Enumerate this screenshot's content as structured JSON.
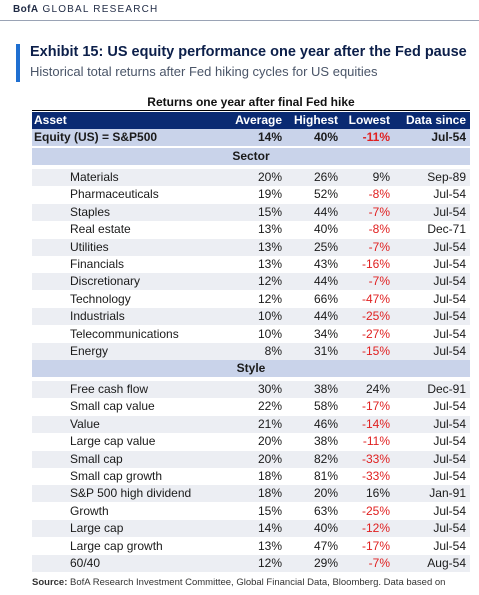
{
  "header": {
    "brand_bold": "BofA",
    "brand_rest": "GLOBAL RESEARCH"
  },
  "exhibit": {
    "title": "Exhibit 15: US equity performance one year after the Fed pause",
    "subtitle": "Historical total returns after Fed hiking cycles for US equities"
  },
  "table": {
    "caption": "Returns one year after final Fed hike",
    "columns": [
      "Asset",
      "Average",
      "Highest",
      "Lowest",
      "Data since"
    ],
    "equity": {
      "asset": "Equity (US) = S&P500",
      "average": "14%",
      "highest": "40%",
      "lowest": "-11%",
      "since": "Jul-54"
    },
    "sector_label": "Sector",
    "sector": [
      {
        "asset": "Materials",
        "average": "20%",
        "highest": "26%",
        "lowest": "9%",
        "since": "Sep-89"
      },
      {
        "asset": "Pharmaceuticals",
        "average": "19%",
        "highest": "52%",
        "lowest": "-8%",
        "since": "Jul-54"
      },
      {
        "asset": "Staples",
        "average": "15%",
        "highest": "44%",
        "lowest": "-7%",
        "since": "Jul-54"
      },
      {
        "asset": "Real estate",
        "average": "13%",
        "highest": "40%",
        "lowest": "-8%",
        "since": "Dec-71"
      },
      {
        "asset": "Utilities",
        "average": "13%",
        "highest": "25%",
        "lowest": "-7%",
        "since": "Jul-54"
      },
      {
        "asset": "Financials",
        "average": "13%",
        "highest": "43%",
        "lowest": "-16%",
        "since": "Jul-54"
      },
      {
        "asset": "Discretionary",
        "average": "12%",
        "highest": "44%",
        "lowest": "-7%",
        "since": "Jul-54"
      },
      {
        "asset": "Technology",
        "average": "12%",
        "highest": "66%",
        "lowest": "-47%",
        "since": "Jul-54"
      },
      {
        "asset": "Industrials",
        "average": "10%",
        "highest": "44%",
        "lowest": "-25%",
        "since": "Jul-54"
      },
      {
        "asset": "Telecommunications",
        "average": "10%",
        "highest": "34%",
        "lowest": "-27%",
        "since": "Jul-54"
      },
      {
        "asset": "Energy",
        "average": "8%",
        "highest": "31%",
        "lowest": "-15%",
        "since": "Jul-54"
      }
    ],
    "style_label": "Style",
    "style": [
      {
        "asset": "Free cash flow",
        "average": "30%",
        "highest": "38%",
        "lowest": "24%",
        "since": "Dec-91"
      },
      {
        "asset": "Small cap value",
        "average": "22%",
        "highest": "58%",
        "lowest": "-17%",
        "since": "Jul-54"
      },
      {
        "asset": "Value",
        "average": "21%",
        "highest": "46%",
        "lowest": "-14%",
        "since": "Jul-54"
      },
      {
        "asset": "Large cap value",
        "average": "20%",
        "highest": "38%",
        "lowest": "-11%",
        "since": "Jul-54"
      },
      {
        "asset": "Small cap",
        "average": "20%",
        "highest": "82%",
        "lowest": "-33%",
        "since": "Jul-54"
      },
      {
        "asset": "Small cap growth",
        "average": "18%",
        "highest": "81%",
        "lowest": "-33%",
        "since": "Jul-54"
      },
      {
        "asset": "S&P 500 high dividend",
        "average": "18%",
        "highest": "20%",
        "lowest": "16%",
        "since": "Jan-91"
      },
      {
        "asset": "Growth",
        "average": "15%",
        "highest": "63%",
        "lowest": "-25%",
        "since": "Jul-54"
      },
      {
        "asset": "Large cap",
        "average": "14%",
        "highest": "40%",
        "lowest": "-12%",
        "since": "Jul-54"
      },
      {
        "asset": "Large cap growth",
        "average": "13%",
        "highest": "47%",
        "lowest": "-17%",
        "since": "Jul-54"
      },
      {
        "asset": "60/40",
        "average": "12%",
        "highest": "29%",
        "lowest": "-7%",
        "since": "Aug-54"
      }
    ]
  },
  "source": {
    "label": "Source:",
    "text": "BofA Research Investment Committee, Global Financial Data, Bloomberg. Data based on"
  },
  "colors": {
    "header_bg": "#0a2a72",
    "section_bg": "#c9d3ea",
    "negative": "#e02020",
    "accent": "#1f6fd1"
  }
}
